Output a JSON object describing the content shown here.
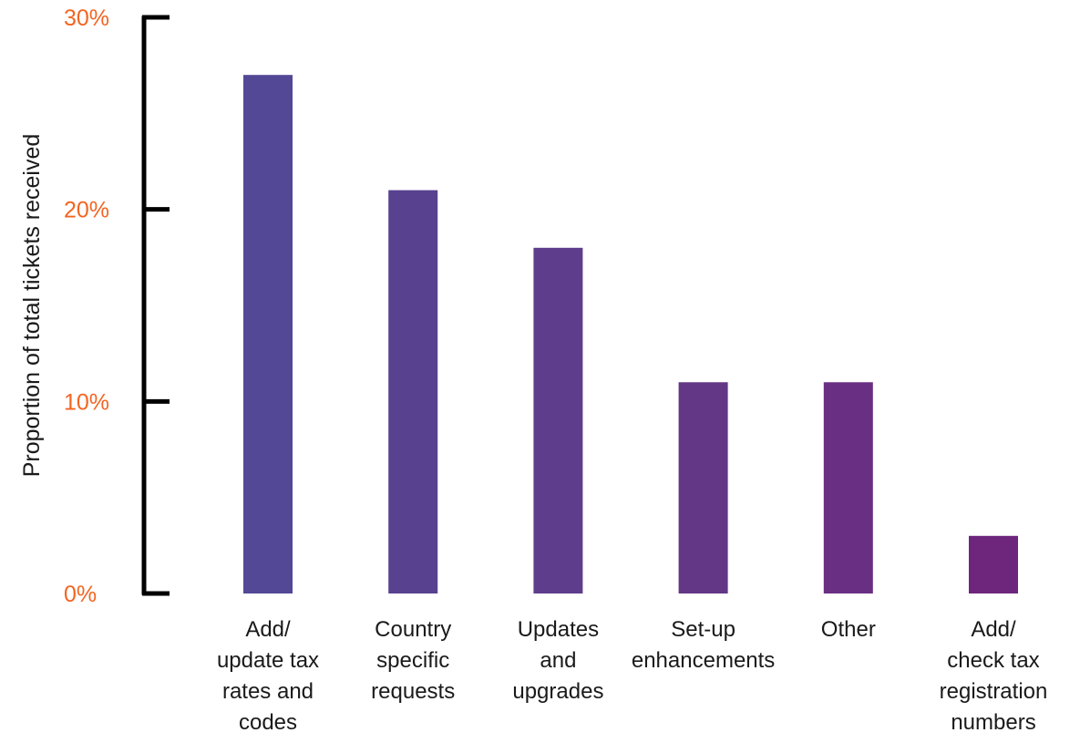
{
  "chart_data": {
    "type": "bar",
    "title": "",
    "xlabel": "",
    "ylabel": "Proportion of total tickets received",
    "ylim": [
      0,
      30
    ],
    "y_ticks": [
      0,
      10,
      20,
      30
    ],
    "y_tick_labels": [
      "0%",
      "10%",
      "20%",
      "30%"
    ],
    "categories": [
      "Add/ update tax rates and codes",
      "Country specific requests",
      "Updates and upgrades",
      "Set-up enhancements",
      "Other",
      "Add/ check tax registration numbers"
    ],
    "category_lines": [
      [
        "Add/",
        "update tax",
        "rates and",
        "codes"
      ],
      [
        "Country",
        "specific",
        "requests"
      ],
      [
        "Updates",
        "and",
        "upgrades"
      ],
      [
        "Set-up",
        "enhancements"
      ],
      [
        "Other"
      ],
      [
        "Add/",
        "check tax",
        "registration",
        "numbers"
      ]
    ],
    "values": [
      27,
      21,
      18,
      11,
      11,
      3
    ],
    "grid": false,
    "legend": "none"
  },
  "colors": {
    "tick_label": "#f26522",
    "axis": "#000000",
    "bars": [
      "#524895",
      "#58418f",
      "#5e3d8c",
      "#633686",
      "#692f83",
      "#6d267b"
    ]
  }
}
